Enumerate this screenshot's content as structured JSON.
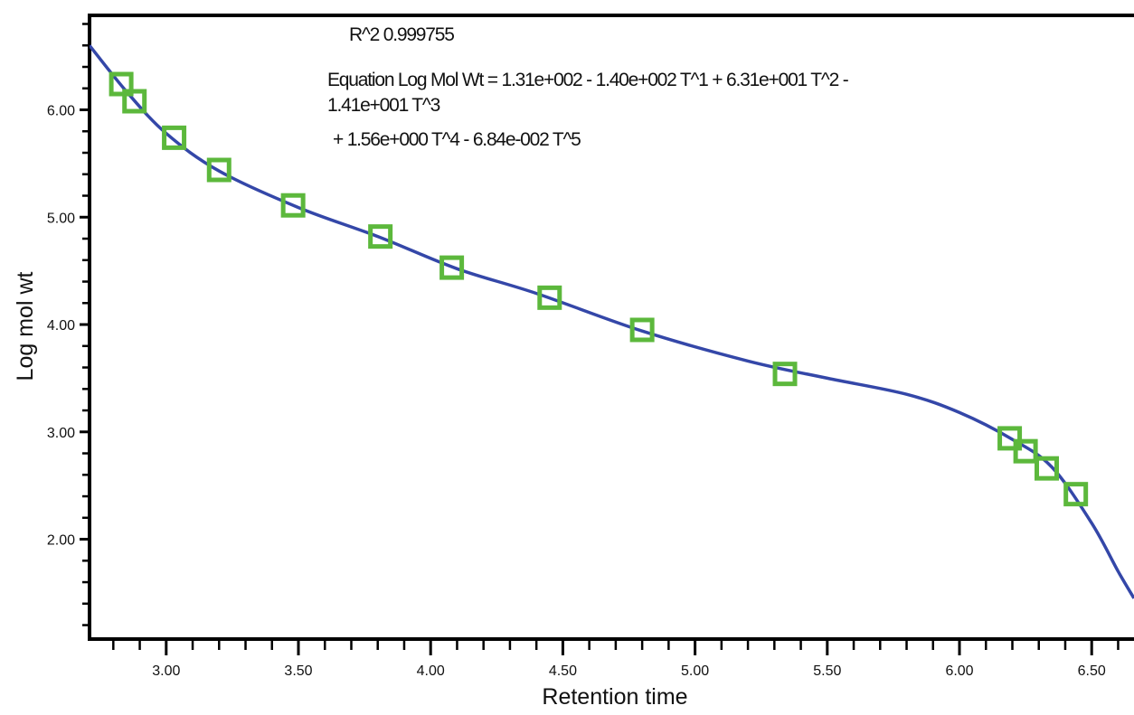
{
  "chart_data": {
    "type": "scatter",
    "xlabel": "Retention time",
    "ylabel": "Log mol wt",
    "xlim": [
      2.71,
      6.66
    ],
    "ylim": [
      1.07,
      6.88
    ],
    "x_ticks": [
      "3.00",
      "3.50",
      "4.00",
      "4.50",
      "5.00",
      "5.50",
      "6.00",
      "6.50"
    ],
    "y_ticks": [
      "2.00",
      "3.00",
      "4.00",
      "5.00",
      "6.00"
    ],
    "annotations": {
      "r2": "R^2 0.999755",
      "equation_line1": "Equation Log Mol Wt = 1.31e+002 - 1.40e+002 T^1 + 6.31e+001 T^2 -",
      "equation_line2": "1.41e+001 T^3",
      "equation_line3": "+ 1.56e+000 T^4 - 6.84e-002 T^5"
    },
    "fit_coefficients": [
      131,
      -140,
      63.1,
      -14.1,
      1.56,
      -0.0684
    ],
    "series": [
      {
        "marker": "square",
        "color": "#5cb83c",
        "points": [
          {
            "x": 2.83,
            "y": 6.24
          },
          {
            "x": 2.88,
            "y": 6.08
          },
          {
            "x": 3.03,
            "y": 5.74
          },
          {
            "x": 3.2,
            "y": 5.44
          },
          {
            "x": 3.48,
            "y": 5.11
          },
          {
            "x": 3.81,
            "y": 4.82
          },
          {
            "x": 4.08,
            "y": 4.53
          },
          {
            "x": 4.45,
            "y": 4.25
          },
          {
            "x": 4.8,
            "y": 3.95
          },
          {
            "x": 5.34,
            "y": 3.54
          },
          {
            "x": 6.19,
            "y": 2.94
          },
          {
            "x": 6.25,
            "y": 2.82
          },
          {
            "x": 6.33,
            "y": 2.66
          },
          {
            "x": 6.44,
            "y": 2.42
          }
        ]
      },
      {
        "type": "line",
        "color": "#3447a8",
        "x": [
          2.71,
          2.85,
          3.0,
          3.2,
          3.5,
          3.8,
          4.1,
          4.4,
          4.8,
          5.2,
          5.5,
          5.8,
          6.0,
          6.2,
          6.35,
          6.5,
          6.6,
          6.66
        ],
        "values": [
          6.6,
          6.17,
          5.78,
          5.43,
          5.09,
          4.82,
          4.52,
          4.29,
          3.94,
          3.66,
          3.5,
          3.35,
          3.18,
          2.93,
          2.67,
          2.15,
          1.7,
          1.45
        ]
      }
    ],
    "grid": false,
    "legend": "none"
  }
}
